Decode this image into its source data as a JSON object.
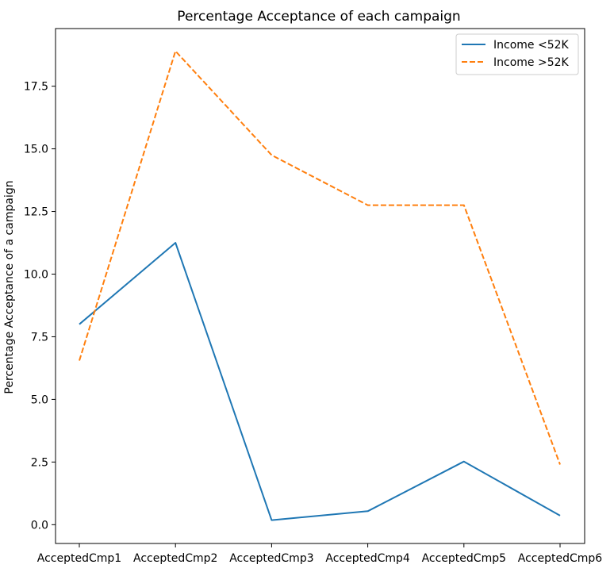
{
  "chart_data": {
    "type": "line",
    "title": "Percentage Acceptance of each campaign",
    "xlabel": "",
    "ylabel": "Percentage Acceptance of a campaign",
    "categories": [
      "AcceptedCmp1",
      "AcceptedCmp2",
      "AcceptedCmp3",
      "AcceptedCmp4",
      "AcceptedCmp5",
      "AcceptedCmp6"
    ],
    "yticks": [
      "0.0",
      "2.5",
      "5.0",
      "7.5",
      "10.0",
      "12.5",
      "15.0",
      "17.5"
    ],
    "ylim": [
      -0.75,
      19.8
    ],
    "grid": false,
    "legend_position": "top-right",
    "series": [
      {
        "name": "Income <52K",
        "values": [
          8.0,
          11.25,
          0.18,
          0.54,
          2.52,
          0.36
        ],
        "color": "#1f77b4",
        "linestyle": "solid"
      },
      {
        "name": "Income >52K",
        "values": [
          6.55,
          18.9,
          14.75,
          12.75,
          12.75,
          2.4
        ],
        "color": "#ff7f0e",
        "linestyle": "dashed"
      }
    ]
  }
}
